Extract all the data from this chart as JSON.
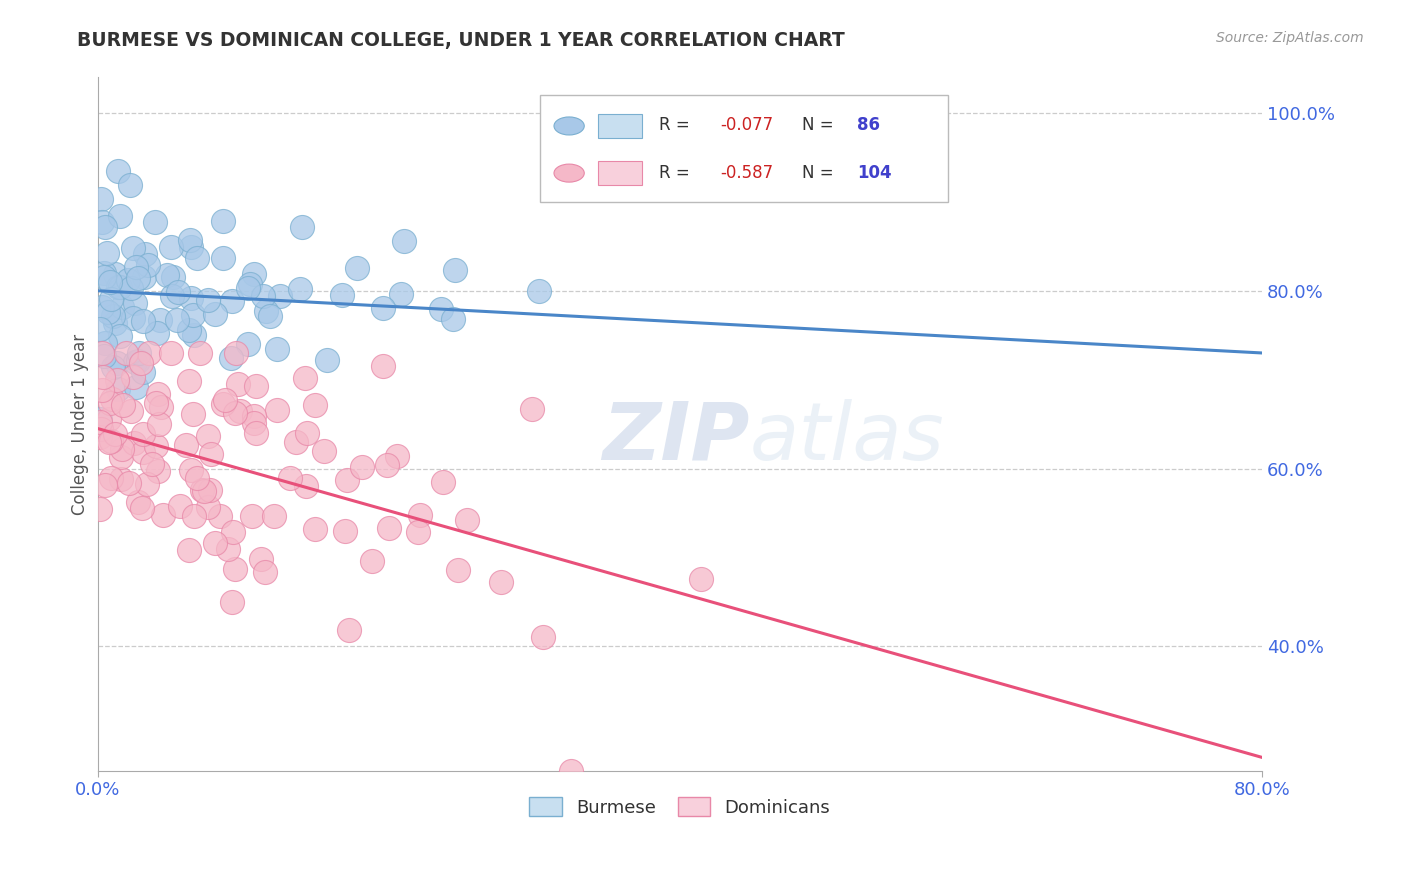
{
  "title": "BURMESE VS DOMINICAN COLLEGE, UNDER 1 YEAR CORRELATION CHART",
  "ylabel": "College, Under 1 year",
  "source_text": "Source: ZipAtlas.com",
  "watermark_zip": "ZIP",
  "watermark_atlas": "atlas",
  "legend_blue_label": "Burmese",
  "legend_pink_label": "Dominicans",
  "blue_R": -0.077,
  "blue_N": 86,
  "pink_R": -0.587,
  "pink_N": 104,
  "blue_marker_color": "#a8c8e8",
  "blue_marker_edge": "#7aafd0",
  "blue_line_color": "#4a86c8",
  "blue_legend_fill": "#c8dff0",
  "blue_legend_edge": "#7aafd0",
  "pink_marker_color": "#f5b8c8",
  "pink_marker_edge": "#e888a8",
  "pink_line_color": "#e8507a",
  "pink_legend_fill": "#f8d0dc",
  "pink_legend_edge": "#e888a8",
  "background_color": "#ffffff",
  "grid_color": "#cccccc",
  "title_color": "#333333",
  "axis_tick_color": "#4169e1",
  "legend_text_color": "#333333",
  "legend_rn_color": "#4040cc",
  "xlim": [
    0.0,
    0.8
  ],
  "ylim": [
    0.26,
    1.04
  ],
  "blue_line_x": [
    0.0,
    0.8
  ],
  "blue_line_y": [
    0.8,
    0.73
  ],
  "pink_line_x": [
    0.0,
    0.8
  ],
  "pink_line_y": [
    0.645,
    0.275
  ]
}
